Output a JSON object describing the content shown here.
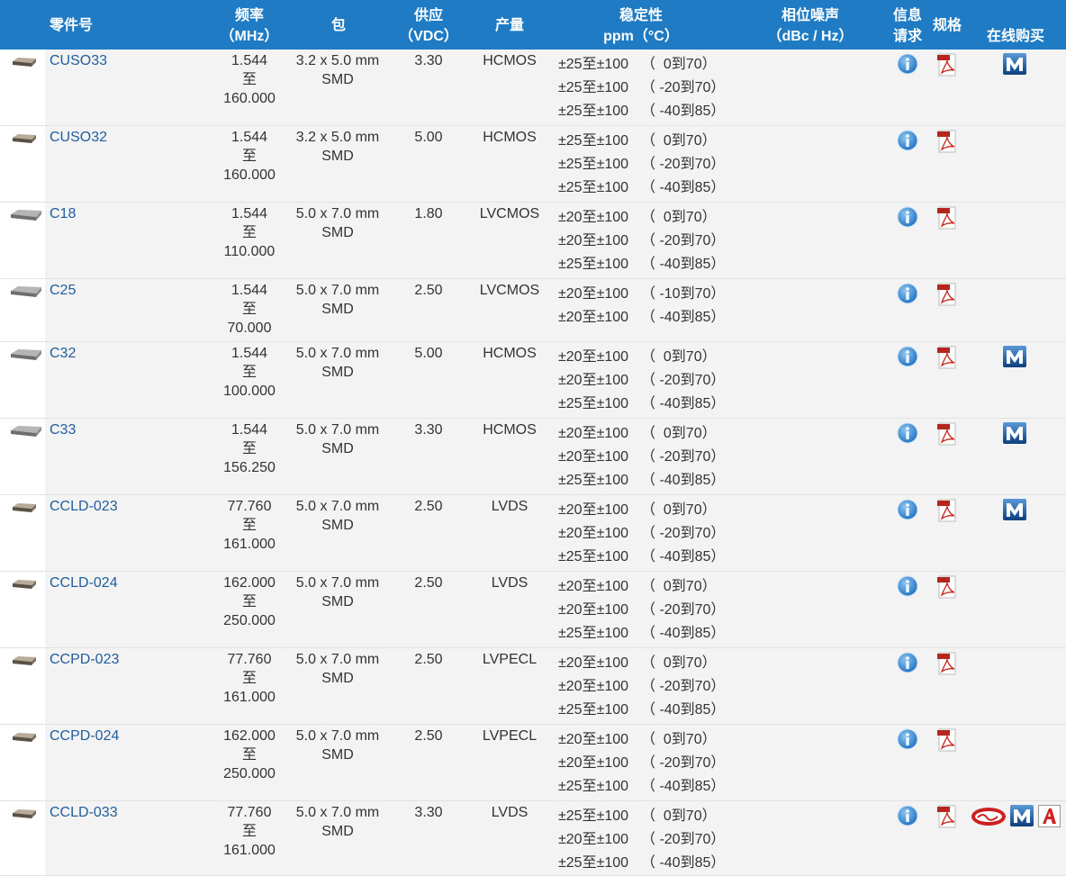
{
  "header": [
    [
      "零件号"
    ],
    [
      "频率",
      "（MHz）"
    ],
    [
      "包"
    ],
    [
      "供应",
      "（VDC）"
    ],
    [
      "产量"
    ],
    [
      "稳定性",
      "ppm（°C）"
    ],
    [
      "相位噪声",
      "（dBc / Hz）"
    ],
    [
      "信息",
      "请求"
    ],
    [
      "规格"
    ],
    [
      "在线购买"
    ]
  ],
  "rows": [
    {
      "part": "CUSO33",
      "freq": [
        "1.544",
        "至",
        "160.000"
      ],
      "package": [
        "3.2 x 5.0 mm",
        "SMD"
      ],
      "supply": "3.30",
      "output": "HCMOS",
      "stability": [
        [
          "±25至±100",
          "（  0到70）"
        ],
        [
          "±25至±100",
          "（ -20到70）"
        ],
        [
          "±25至±100",
          "（ -40到85）"
        ]
      ]
    },
    {
      "part": "CUSO32",
      "freq": [
        "1.544",
        "至",
        "160.000"
      ],
      "package": [
        "3.2 x 5.0 mm",
        "SMD"
      ],
      "supply": "5.00",
      "output": "HCMOS",
      "stability": [
        [
          "±25至±100",
          "（  0到70）"
        ],
        [
          "±25至±100",
          "（ -20到70）"
        ],
        [
          "±25至±100",
          "（ -40到85）"
        ]
      ]
    },
    {
      "part": "C18",
      "freq": [
        "1.544",
        "至",
        "110.000"
      ],
      "package": [
        "5.0 x 7.0 mm",
        "SMD"
      ],
      "supply": "1.80",
      "output": "LVCMOS",
      "stability": [
        [
          "±20至±100",
          "（  0到70）"
        ],
        [
          "±20至±100",
          "（ -20到70）"
        ],
        [
          "±25至±100",
          "（ -40到85）"
        ]
      ]
    },
    {
      "part": "C25",
      "freq": [
        "1.544",
        "至",
        "70.000"
      ],
      "package": [
        "5.0 x 7.0 mm",
        "SMD"
      ],
      "supply": "2.50",
      "output": "LVCMOS",
      "stability": [
        [
          "±20至±100",
          "（ -10到70）"
        ],
        [
          "±20至±100",
          "（ -40到85）"
        ]
      ]
    },
    {
      "part": "C32",
      "freq": [
        "1.544",
        "至",
        "100.000"
      ],
      "package": [
        "5.0 x 7.0 mm",
        "SMD"
      ],
      "supply": "5.00",
      "output": "HCMOS",
      "stability": [
        [
          "±20至±100",
          "（  0到70）"
        ],
        [
          "±20至±100",
          "（ -20到70）"
        ],
        [
          "±25至±100",
          "（ -40到85）"
        ]
      ]
    },
    {
      "part": "C33",
      "freq": [
        "1.544",
        "至",
        "156.250"
      ],
      "package": [
        "5.0 x 7.0 mm",
        "SMD"
      ],
      "supply": "3.30",
      "output": "HCMOS",
      "stability": [
        [
          "±20至±100",
          "（  0到70）"
        ],
        [
          "±20至±100",
          "（ -20到70）"
        ],
        [
          "±25至±100",
          "（ -40到85）"
        ]
      ]
    },
    {
      "part": "CCLD-023",
      "freq": [
        "77.760",
        "至",
        "161.000"
      ],
      "package": [
        "5.0 x 7.0 mm",
        "SMD"
      ],
      "supply": "2.50",
      "output": "LVDS",
      "stability": [
        [
          "±20至±100",
          "（  0到70）"
        ],
        [
          "±20至±100",
          "（ -20到70）"
        ],
        [
          "±25至±100",
          "（ -40到85）"
        ]
      ]
    },
    {
      "part": "CCLD-024",
      "freq": [
        "162.000",
        "至",
        "250.000"
      ],
      "package": [
        "5.0 x 7.0 mm",
        "SMD"
      ],
      "supply": "2.50",
      "output": "LVDS",
      "stability": [
        [
          "±20至±100",
          "（  0到70）"
        ],
        [
          "±20至±100",
          "（ -20到70）"
        ],
        [
          "±25至±100",
          "（ -40到85）"
        ]
      ]
    },
    {
      "part": "CCPD-023",
      "freq": [
        "77.760",
        "至",
        "161.000"
      ],
      "package": [
        "5.0 x 7.0 mm",
        "SMD"
      ],
      "supply": "2.50",
      "output": "LVPECL",
      "stability": [
        [
          "±20至±100",
          "（  0到70）"
        ],
        [
          "±20至±100",
          "（ -20到70）"
        ],
        [
          "±25至±100",
          "（ -40到85）"
        ]
      ]
    },
    {
      "part": "CCPD-024",
      "freq": [
        "162.000",
        "至",
        "250.000"
      ],
      "package": [
        "5.0 x 7.0 mm",
        "SMD"
      ],
      "supply": "2.50",
      "output": "LVPECL",
      "stability": [
        [
          "±20至±100",
          "（  0到70）"
        ],
        [
          "±20至±100",
          "（ -20到70）"
        ],
        [
          "±25至±100",
          "（ -40到85）"
        ]
      ]
    },
    {
      "part": "CCLD-033",
      "freq": [
        "77.760",
        "至",
        "161.000"
      ],
      "package": [
        "5.0 x 7.0 mm",
        "SMD"
      ],
      "supply": "3.30",
      "output": "LVDS",
      "stability": [
        [
          "±25至±100",
          "（  0到70）"
        ],
        [
          "±20至±100",
          "（ -20到70）"
        ],
        [
          "±25至±100",
          "（ -40到85）"
        ]
      ]
    }
  ]
}
